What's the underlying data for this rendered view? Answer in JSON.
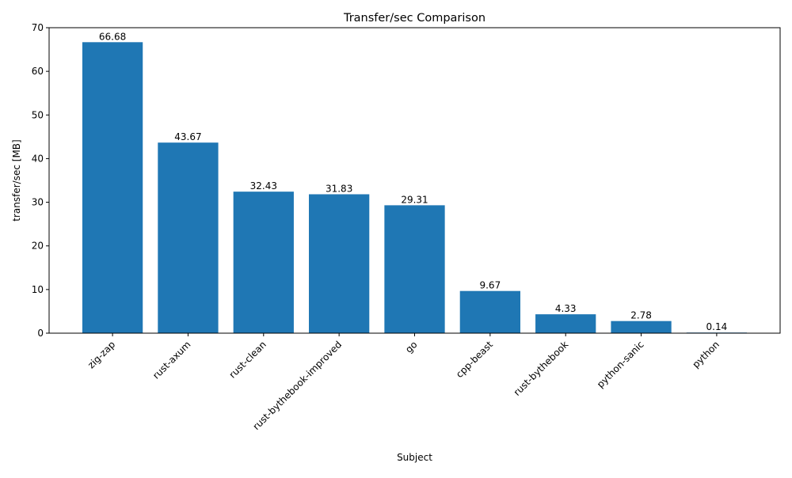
{
  "chart_data": {
    "type": "bar",
    "title": "Transfer/sec Comparison",
    "xlabel": "Subject",
    "ylabel": "transfer/sec [MB]",
    "categories": [
      "zig-zap",
      "rust-axum",
      "rust-clean",
      "rust-bythebook-improved",
      "go",
      "cpp-beast",
      "rust-bythebook",
      "python-sanic",
      "python"
    ],
    "values": [
      66.68,
      43.67,
      32.43,
      31.83,
      29.31,
      9.67,
      4.33,
      2.78,
      0.14
    ],
    "data_labels": [
      "66.68",
      "43.67",
      "32.43",
      "31.83",
      "29.31",
      "9.67",
      "4.33",
      "2.78",
      "0.14"
    ],
    "ylim": [
      0,
      70
    ],
    "yticks": [
      0,
      10,
      20,
      30,
      40,
      50,
      60,
      70
    ],
    "grid": false,
    "bar_color": "#1f77b4",
    "xtick_rotation_deg": 45
  }
}
